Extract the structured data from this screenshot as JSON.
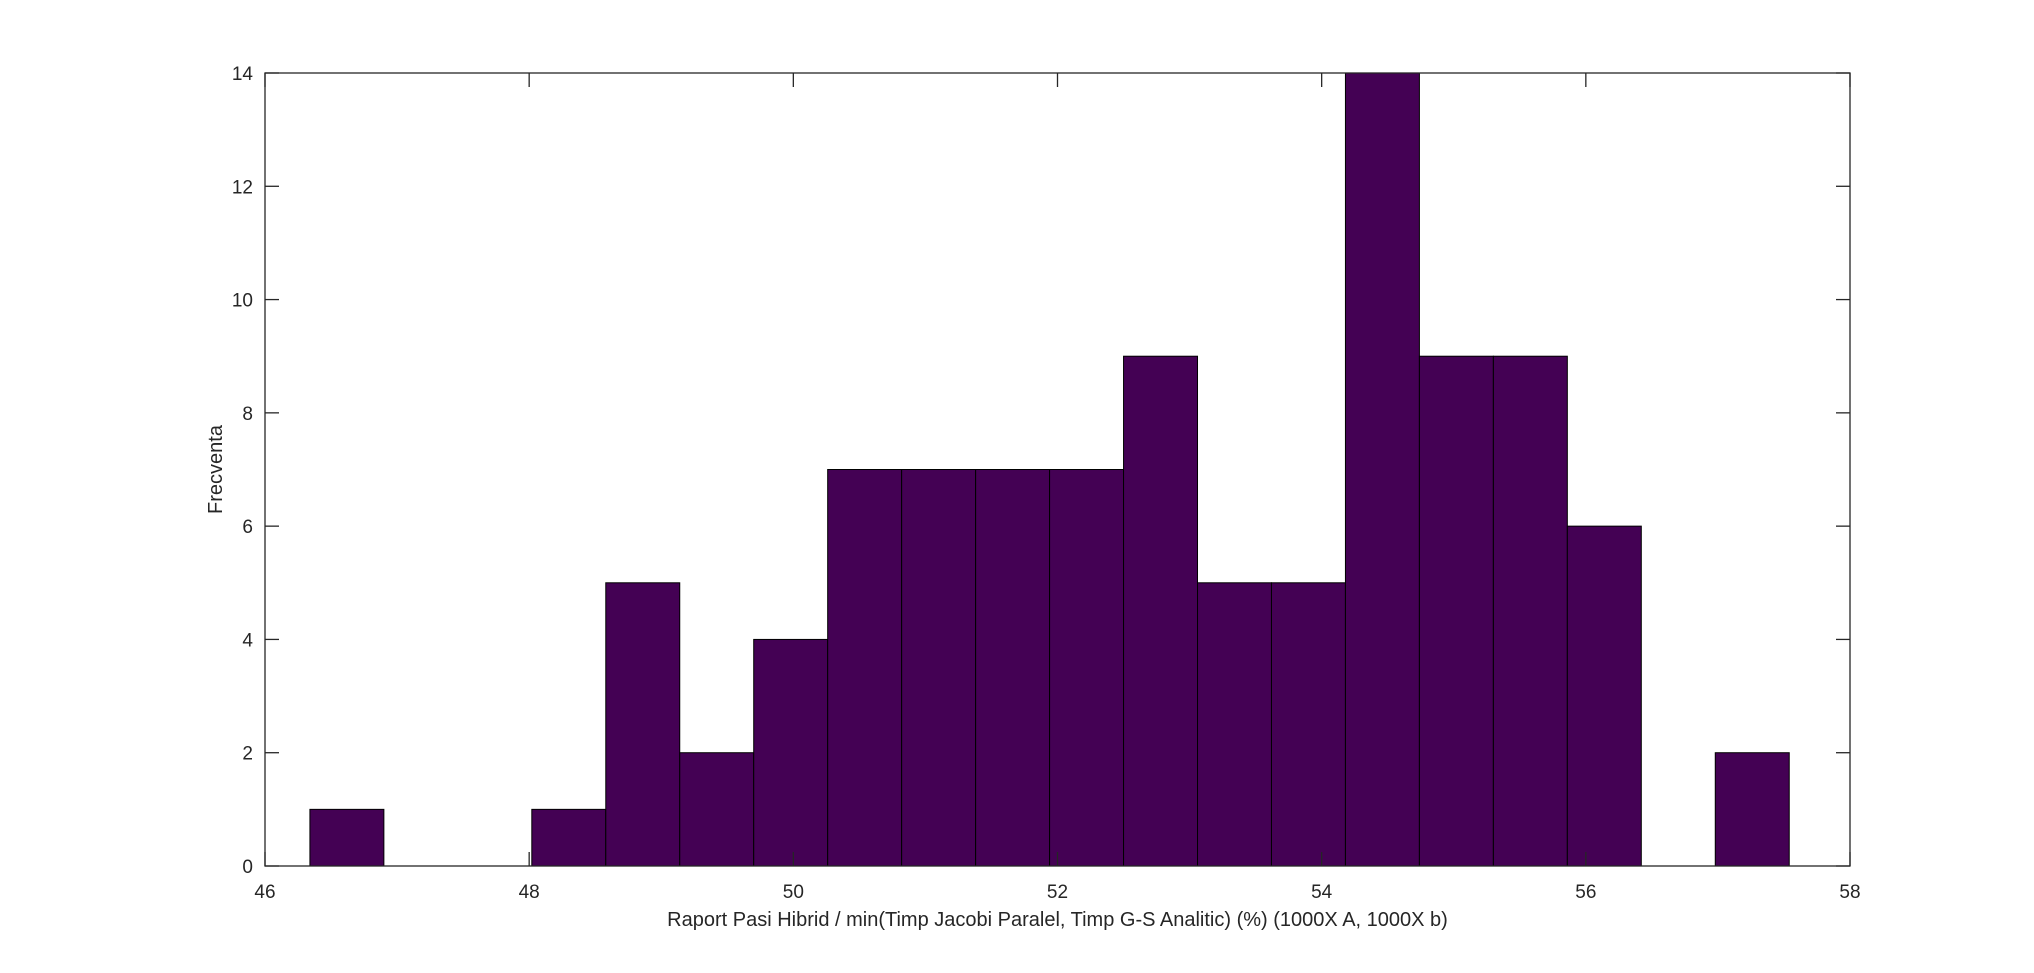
{
  "chart_data": {
    "type": "bar",
    "subtype": "histogram",
    "title": "",
    "xlabel": "Raport Pasi Hibrid / min(Timp Jacobi Paralel, Timp G-S Analitic) (%) (1000X A, 1000X b)",
    "ylabel": "Frecventa",
    "xlim": [
      46,
      58
    ],
    "ylim": [
      0,
      14
    ],
    "xticks": [
      46,
      48,
      50,
      52,
      54,
      56,
      58
    ],
    "yticks": [
      0,
      2,
      4,
      6,
      8,
      10,
      12,
      14
    ],
    "grid": false,
    "bar_color": "#440154",
    "edge_color": "#000000",
    "bins": [
      {
        "start": 46.34,
        "end": 46.9,
        "count": 1
      },
      {
        "start": 46.9,
        "end": 47.46,
        "count": 0
      },
      {
        "start": 47.46,
        "end": 48.02,
        "count": 0
      },
      {
        "start": 48.02,
        "end": 48.58,
        "count": 1
      },
      {
        "start": 48.58,
        "end": 49.14,
        "count": 5
      },
      {
        "start": 49.14,
        "end": 49.7,
        "count": 2
      },
      {
        "start": 49.7,
        "end": 50.26,
        "count": 4
      },
      {
        "start": 50.26,
        "end": 50.82,
        "count": 7
      },
      {
        "start": 50.82,
        "end": 51.38,
        "count": 7
      },
      {
        "start": 51.38,
        "end": 51.94,
        "count": 7
      },
      {
        "start": 51.94,
        "end": 52.5,
        "count": 7
      },
      {
        "start": 52.5,
        "end": 53.06,
        "count": 9
      },
      {
        "start": 53.06,
        "end": 53.62,
        "count": 5
      },
      {
        "start": 53.62,
        "end": 54.18,
        "count": 5
      },
      {
        "start": 54.18,
        "end": 54.74,
        "count": 14
      },
      {
        "start": 54.74,
        "end": 55.3,
        "count": 9
      },
      {
        "start": 55.3,
        "end": 55.86,
        "count": 9
      },
      {
        "start": 55.86,
        "end": 56.42,
        "count": 6
      },
      {
        "start": 56.42,
        "end": 56.98,
        "count": 0
      },
      {
        "start": 56.98,
        "end": 57.54,
        "count": 2
      }
    ]
  }
}
